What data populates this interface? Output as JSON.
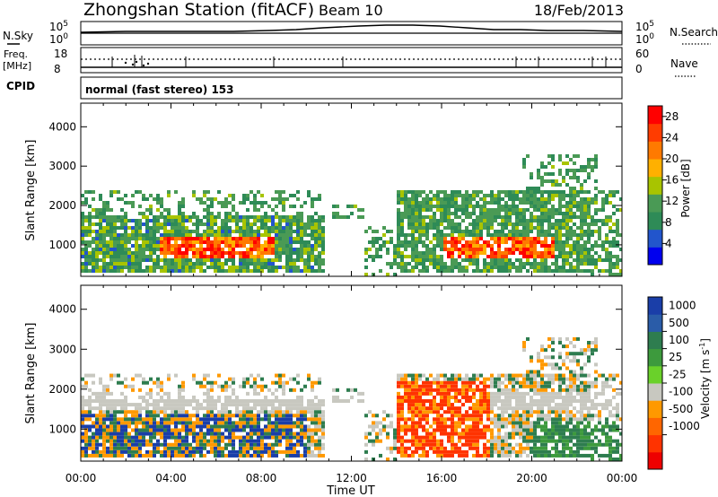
{
  "header": {
    "title": "Zhongshan Station (fitACF)",
    "beam": "Beam 10",
    "date": "18/Feb/2013"
  },
  "panels": {
    "nsky_label": "N.Sky",
    "nsky_ticks": [
      "10^5",
      "10^0"
    ],
    "nsearch_label": "N.Search",
    "nsearch_ticks": [
      "10^5",
      "10^0"
    ],
    "freq_label_line1": "Freq.",
    "freq_label_line2": "[MHz]",
    "freq_ticks": [
      "18",
      "8"
    ],
    "nave_label": "Nave",
    "nave_ticks": [
      "60",
      "0"
    ],
    "cpid_label": "CPID",
    "cpid_text": "normal (fast stereo) 153"
  },
  "colors": {
    "power_scale": [
      "#0000ee",
      "#2255cc",
      "#2e8b57",
      "#4a9a55",
      "#a8c400",
      "#ffb000",
      "#ff7a00",
      "#ff3c00",
      "#ff0000"
    ],
    "velocity_scale": [
      "#1a3ea8",
      "#2a5ca8",
      "#2e7d4f",
      "#3d9a3d",
      "#6ad12a",
      "#c8c8c0",
      "#ff9900",
      "#ff6600",
      "#ff3300",
      "#ee0000"
    ]
  },
  "chart_data": [
    {
      "type": "heatmap",
      "name": "power",
      "ylabel": "Slant Range [km]",
      "y_ticks": [
        "1000",
        "2000",
        "3000",
        "4000"
      ],
      "ylim": [
        200,
        4600
      ],
      "x_ticks": [
        "00:00",
        "04:00",
        "08:00",
        "12:00",
        "16:00",
        "20:00",
        "00:00"
      ],
      "xlim_hours": [
        0,
        24
      ],
      "colorbar_label": "Power [dB]",
      "colorbar_ticks": [
        "28",
        "24",
        "20",
        "16",
        "12",
        "8",
        "4"
      ],
      "colorbar_range": [
        0,
        30
      ]
    },
    {
      "type": "heatmap",
      "name": "velocity",
      "ylabel": "Slant Range [km]",
      "y_ticks": [
        "1000",
        "2000",
        "3000",
        "4000"
      ],
      "ylim": [
        200,
        4600
      ],
      "x_ticks": [
        "00:00",
        "04:00",
        "08:00",
        "12:00",
        "16:00",
        "20:00",
        "00:00"
      ],
      "xlabel": "Time UT",
      "colorbar_label": "Velocity [m s",
      "colorbar_label_sup": "-1",
      "colorbar_label_end": "]",
      "colorbar_ticks": [
        "1000",
        "500",
        "100",
        "25",
        "-25",
        "-100",
        "-500",
        "-1000"
      ]
    }
  ]
}
